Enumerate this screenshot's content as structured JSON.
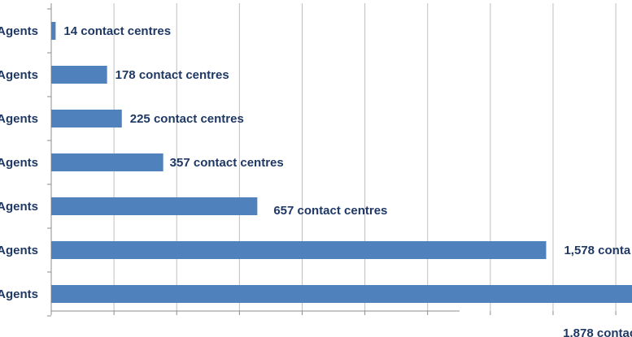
{
  "chart_data": {
    "type": "bar",
    "orientation": "horizontal",
    "title": "",
    "xlabel": "",
    "ylabel": "",
    "categories": [
      "Agents",
      "Agents",
      "Agents",
      "Agents",
      "Agents",
      "Agents",
      "Agents"
    ],
    "values": [
      14,
      178,
      225,
      357,
      657,
      1578,
      1878
    ],
    "data_labels": [
      "14 contact centres",
      "178 contact centres",
      "225 contact centres",
      "357 contact centres",
      "657 contact centres",
      "1,578 conta",
      "1,878 contac"
    ],
    "xlim": [
      0,
      1900
    ],
    "grid": true,
    "bar_color": "#4f81bd",
    "label_color": "#1f3864",
    "grid_color": "#bfbfbf"
  }
}
